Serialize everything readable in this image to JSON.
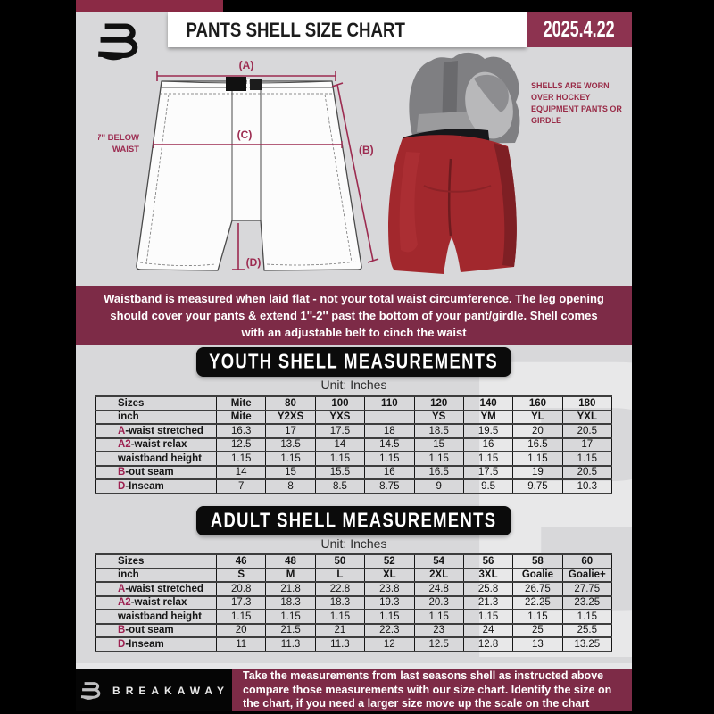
{
  "colors": {
    "accent_maroon": "#9c2050",
    "banner_maroon": "#7d2b47",
    "badge_maroon": "#8d3350",
    "strip_maroon": "#8b2a45",
    "banner_black": "#0b0b0b",
    "page_gray": "#d8d8da",
    "shell_red": "#a2282d"
  },
  "header": {
    "title": "PANTS SHELL SIZE CHART",
    "date": "2025.4.22"
  },
  "diagram": {
    "label_a": "(A)",
    "label_b": "(B)",
    "label_c": "(C)",
    "label_d": "(D)",
    "waist_note_line1": "7'' BELOW",
    "waist_note_line2": "WAIST",
    "photo_note": "SHELLS ARE WORN OVER HOCKEY EQUIPMENT PANTS OR GIRDLE"
  },
  "notice": "Waistband is measured when laid flat - not your total waist circumference. The leg opening should cover your pants & extend 1''-2'' past the bottom of your pant/girdle. Shell comes with an adjustable belt to cinch the waist",
  "youth": {
    "title": "YOUTH SHELL MEASUREMENTS",
    "unit": "Unit: Inches",
    "rows": [
      {
        "accent": "",
        "label": "Sizes",
        "header": true,
        "values": [
          "Mite",
          "80",
          "100",
          "110",
          "120",
          "140",
          "160",
          "180"
        ]
      },
      {
        "accent": "",
        "label": "inch",
        "header": true,
        "values": [
          "Mite",
          "Y2XS",
          "YXS",
          "",
          "YS",
          "YM",
          "YL",
          "YXL"
        ]
      },
      {
        "accent": "A",
        "label": "-waist stretched",
        "values": [
          "16.3",
          "17",
          "17.5",
          "18",
          "18.5",
          "19.5",
          "20",
          "20.5"
        ]
      },
      {
        "accent": "A2",
        "label": "-waist relax",
        "values": [
          "12.5",
          "13.5",
          "14",
          "14.5",
          "15",
          "16",
          "16.5",
          "17"
        ]
      },
      {
        "accent": "",
        "label": "waistband height",
        "values": [
          "1.15",
          "1.15",
          "1.15",
          "1.15",
          "1.15",
          "1.15",
          "1.15",
          "1.15"
        ]
      },
      {
        "accent": "B",
        "label": "-out seam",
        "values": [
          "14",
          "15",
          "15.5",
          "16",
          "16.5",
          "17.5",
          "19",
          "20.5"
        ]
      },
      {
        "accent": "D",
        "label": "-Inseam",
        "values": [
          "7",
          "8",
          "8.5",
          "8.75",
          "9",
          "9.5",
          "9.75",
          "10.3"
        ]
      }
    ]
  },
  "adult": {
    "title": "ADULT SHELL MEASUREMENTS",
    "unit": "Unit: Inches",
    "rows": [
      {
        "accent": "",
        "label": "Sizes",
        "header": true,
        "values": [
          "46",
          "48",
          "50",
          "52",
          "54",
          "56",
          "58",
          "60"
        ]
      },
      {
        "accent": "",
        "label": "inch",
        "header": true,
        "values": [
          "S",
          "M",
          "L",
          "XL",
          "2XL",
          "3XL",
          "Goalie",
          "Goalie+"
        ]
      },
      {
        "accent": "A",
        "label": "-waist stretched",
        "values": [
          "20.8",
          "21.8",
          "22.8",
          "23.8",
          "24.8",
          "25.8",
          "26.75",
          "27.75"
        ]
      },
      {
        "accent": "A2",
        "label": "-waist relax",
        "values": [
          "17.3",
          "18.3",
          "18.3",
          "19.3",
          "20.3",
          "21.3",
          "22.25",
          "23.25"
        ]
      },
      {
        "accent": "",
        "label": "waistband height",
        "values": [
          "1.15",
          "1.15",
          "1.15",
          "1.15",
          "1.15",
          "1.15",
          "1.15",
          "1.15"
        ]
      },
      {
        "accent": "B",
        "label": "-out seam",
        "values": [
          "20",
          "21.5",
          "21",
          "22.3",
          "23",
          "24",
          "25",
          "25.5"
        ]
      },
      {
        "accent": "D",
        "label": "-Inseam",
        "values": [
          "11",
          "11.3",
          "11.3",
          "12",
          "12.5",
          "12.8",
          "13",
          "13.25"
        ]
      }
    ]
  },
  "footer": {
    "brand": "BREAKAWAY",
    "text": "Take the measurements from last seasons shell as instructed above compare those measurements  with our size chart. Identify the size on the chart, if you need a larger size move up the scale on the chart"
  }
}
